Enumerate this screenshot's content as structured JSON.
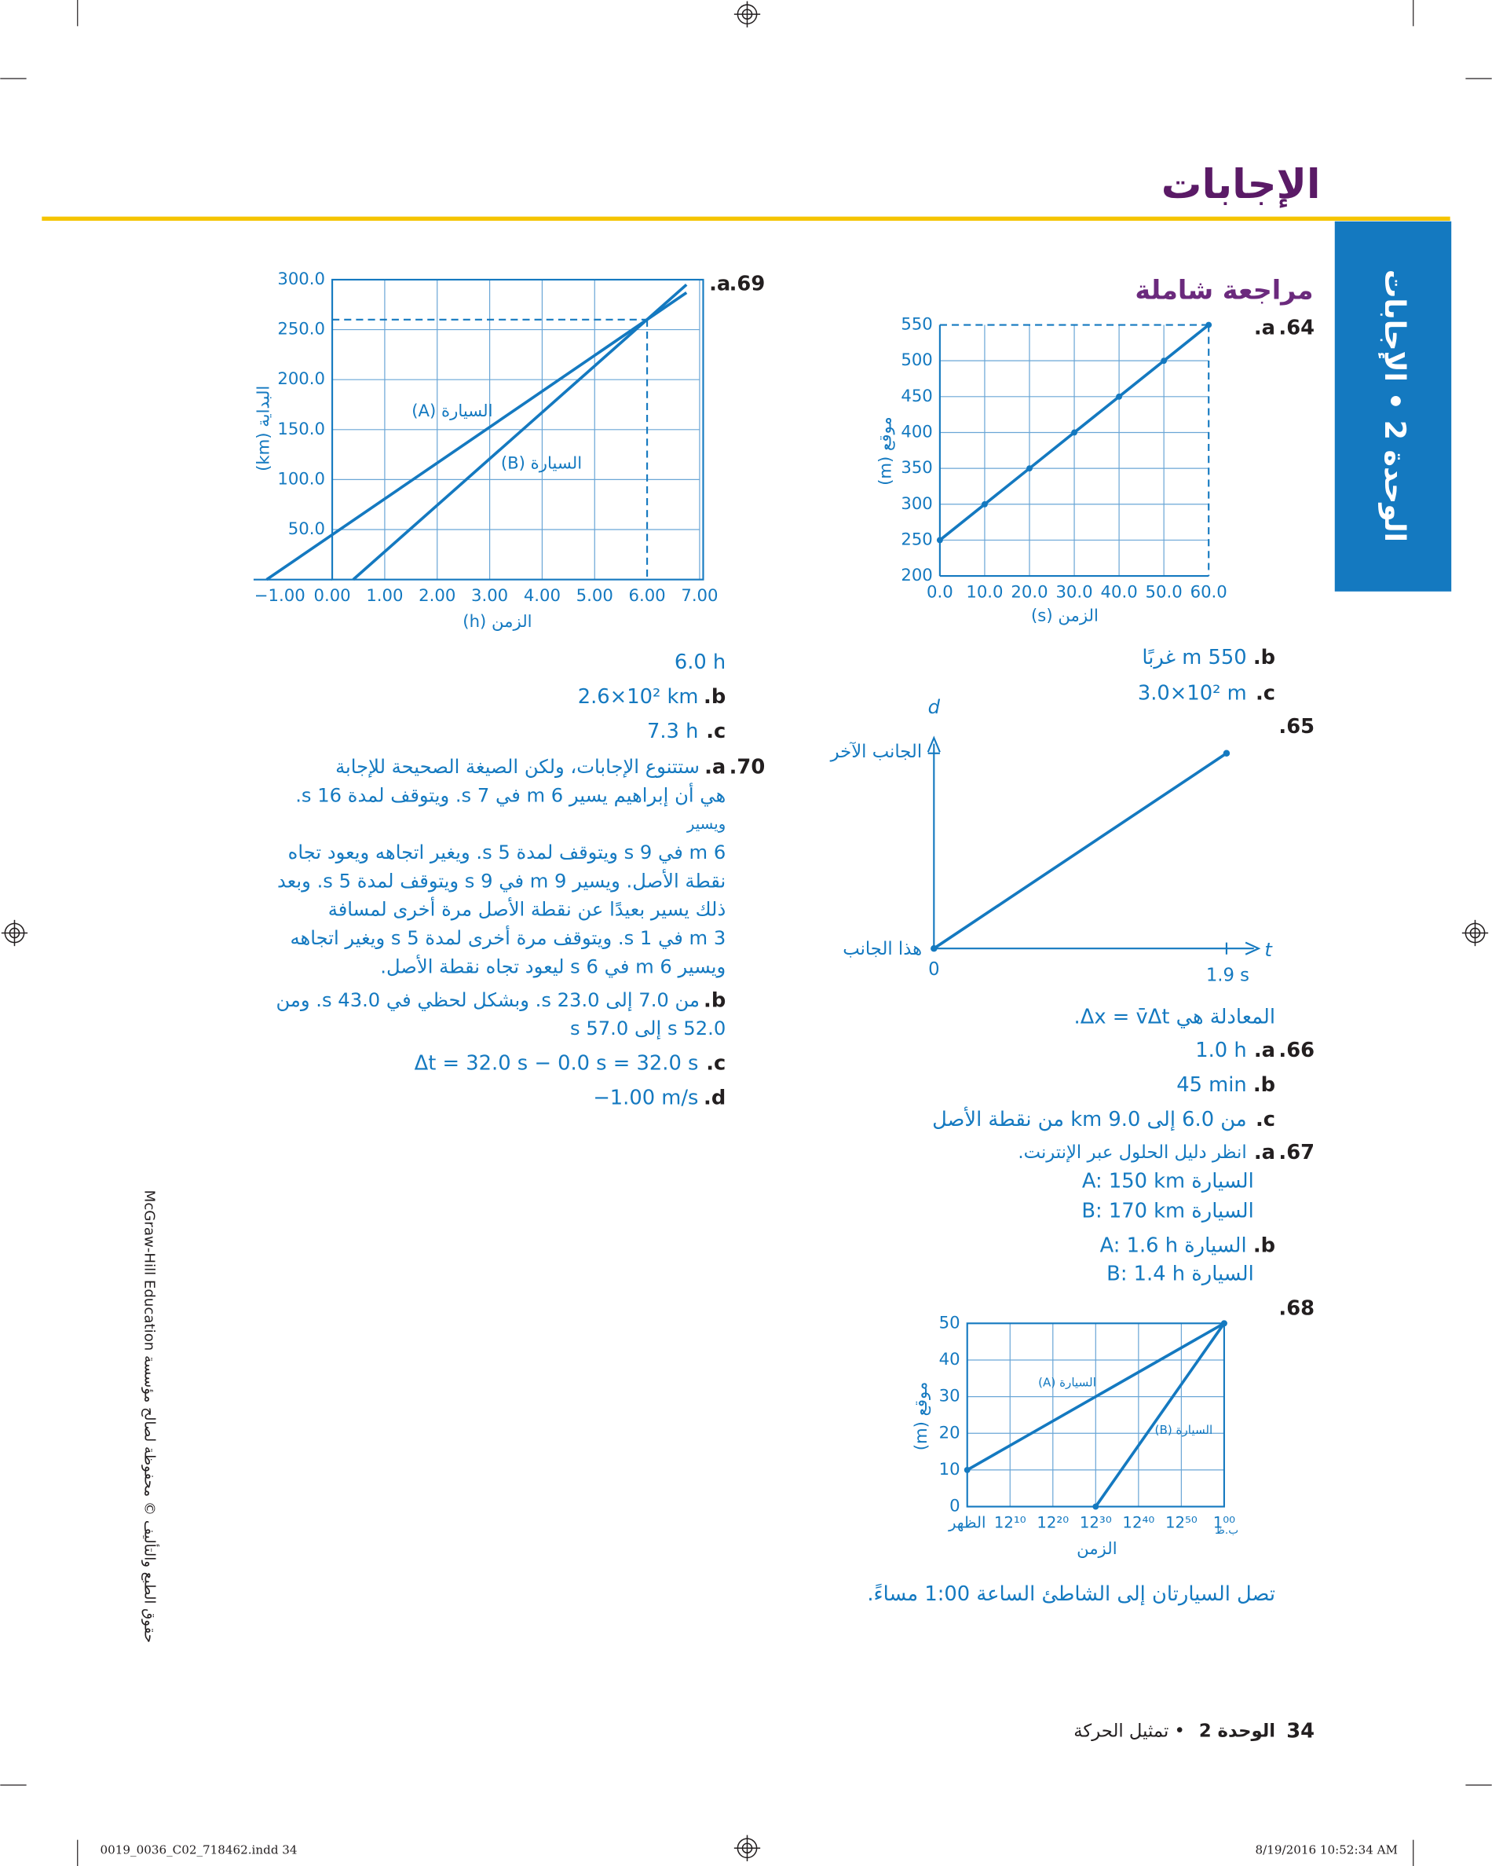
{
  "header": {
    "title": "الإجابات"
  },
  "side_tab": "الوحدة 2 • الإجابات",
  "section_title": "مراجعة شاملة",
  "q64": {
    "number": "64.",
    "a": {
      "label": "a.",
      "chart": {
        "type": "line",
        "ylabel": "موقع (m)",
        "xlabel": "الزمن (s)",
        "xlim": [
          0,
          60
        ],
        "ylim": [
          200,
          550
        ],
        "xticks": [
          {
            "value": 0,
            "label": "0.0"
          },
          {
            "value": 10,
            "label": "10.0"
          },
          {
            "value": 20,
            "label": "20.0"
          },
          {
            "value": 30,
            "label": "30.0"
          },
          {
            "value": 40,
            "label": "40.0"
          },
          {
            "value": 50,
            "label": "50.0"
          },
          {
            "value": 60,
            "label": "60.0"
          }
        ],
        "yticks": [
          200,
          250,
          300,
          350,
          400,
          450,
          500,
          550
        ],
        "grid": true,
        "markers": true,
        "guides": {
          "x": 60,
          "y": 550
        },
        "series": [
          {
            "color": "#1479c0",
            "x": [
              0,
              10,
              20,
              30,
              40,
              50,
              60
            ],
            "values": [
              250,
              300,
              350,
              400,
              450,
              500,
              550
            ]
          }
        ]
      }
    },
    "b": {
      "label": "b.",
      "text": "550 m غربًا"
    },
    "c": {
      "label": "c.",
      "text": "3.0×10² m"
    }
  },
  "q65": {
    "number": "65.",
    "diagram": {
      "y_axis": "d",
      "x_axis": "t",
      "far_side": "الجانب الآخر",
      "near_side": "هذا الجانب",
      "origin": "0",
      "end_time": "1.9 s"
    },
    "equation": "المعادلة هي Δx = v̄Δt."
  },
  "q66": {
    "number": "66.",
    "a": {
      "label": "a.",
      "text": "1.0 h"
    },
    "b": {
      "label": "b.",
      "text": "45 min"
    },
    "c": {
      "label": "c.",
      "text": "من 6.0 إلى 9.0 km من نقطة الأصل"
    }
  },
  "q67": {
    "number": "67.",
    "a": {
      "label": "a.",
      "lines": [
        "انظر دليل الحلول عبر الإنترنت.",
        "السيارة A: 150 km",
        "السيارة B: 170 km"
      ]
    },
    "b": {
      "label": "b.",
      "lines": [
        "السيارة A: 1.6 h",
        "السيارة B: 1.4 h"
      ]
    }
  },
  "q68": {
    "number": "68.",
    "chart": {
      "type": "line",
      "ylabel": "موقع (m)",
      "xlabel": "الزمن",
      "pm_label": "ب.ظ",
      "xlim": [
        0,
        60
      ],
      "ylim": [
        0,
        50
      ],
      "xticks": [
        {
          "value": 0,
          "label": "الظهر"
        },
        {
          "value": 10,
          "label": "12¹⁰"
        },
        {
          "value": 20,
          "label": "12²⁰"
        },
        {
          "value": 30,
          "label": "12³⁰"
        },
        {
          "value": 40,
          "label": "12⁴⁰"
        },
        {
          "value": 50,
          "label": "12⁵⁰"
        },
        {
          "value": 60,
          "label": "1⁰⁰"
        }
      ],
      "yticks": [
        0,
        10,
        20,
        30,
        40,
        50
      ],
      "grid": true,
      "markers": true,
      "series": [
        {
          "name": "السيارة (A)",
          "color": "#1479c0",
          "x": [
            0,
            60
          ],
          "values": [
            10,
            50
          ]
        },
        {
          "name": "السيارة (B)",
          "color": "#1479c0",
          "x": [
            30,
            60
          ],
          "values": [
            0,
            50
          ]
        }
      ]
    },
    "conclusion": "تصل السيارتان إلى الشاطئ الساعة 1:00 مساءً."
  },
  "q69": {
    "number": "69.",
    "a": {
      "label": "a.",
      "chart": {
        "type": "line",
        "ylabel": "البداية (km)",
        "xlabel": "الزمن (h)",
        "xlim": [
          -1,
          7
        ],
        "ylim": [
          0,
          300
        ],
        "xticks": [
          {
            "value": -1,
            "label": "−1.00"
          },
          {
            "value": 0,
            "label": "0.00"
          },
          {
            "value": 1,
            "label": "1.00"
          },
          {
            "value": 2,
            "label": "2.00"
          },
          {
            "value": 3,
            "label": "3.00"
          },
          {
            "value": 4,
            "label": "4.00"
          },
          {
            "value": 5,
            "label": "5.00"
          },
          {
            "value": 6,
            "label": "6.00"
          },
          {
            "value": 7,
            "label": "7.00"
          }
        ],
        "yticks": [
          {
            "value": 50,
            "label": "50.0"
          },
          {
            "value": 100,
            "label": "100.0"
          },
          {
            "value": 150,
            "label": "150.0"
          },
          {
            "value": 200,
            "label": "200.0"
          },
          {
            "value": 250,
            "label": "250.0"
          },
          {
            "value": 300,
            "label": "300.0"
          }
        ],
        "grid": true,
        "markers": false,
        "guides": {
          "x": 6.0,
          "y": 260
        },
        "series": [
          {
            "name": "السيارة (A)",
            "color": "#1479c0",
            "x": [
              -1.25,
              6.75
            ],
            "values": [
              0,
              287
            ]
          },
          {
            "name": "السيارة (B)",
            "color": "#1479c0",
            "x": [
              0.4,
              6.75
            ],
            "values": [
              0,
              295
            ]
          }
        ]
      },
      "text": "6.0 h"
    },
    "b": {
      "label": "b.",
      "text": "2.6×10² km"
    },
    "c": {
      "label": "c.",
      "text": "7.3 h"
    }
  },
  "q70": {
    "number": "70.",
    "a": {
      "label": "a.",
      "lines": [
        "ستتنوع الإجابات، ولكن الصيغة الصحيحة للإجابة",
        "هي أن إبراهيم يسير 6 m في 7 s. ويتوقف لمدة 16 s.",
        "ويسير",
        "6 m في 9 s ويتوقف لمدة 5 s. ويغير اتجاهه ويعود تجاه",
        "نقطة الأصل. ويسير 9 m في 9 s ويتوقف لمدة 5 s. وبعد",
        "ذلك يسير بعيدًا عن نقطة الأصل مرة أخرى لمسافة",
        "3 m في 1 s. ويتوقف مرة أخرى لمدة 5 s ويغير اتجاهه",
        "ويسير 6 m في 6 s ليعود تجاه نقطة الأصل."
      ]
    },
    "b": {
      "label": "b.",
      "lines": [
        "من 7.0 إلى 23.0 s. وبشكل لحظي في 43.0 s. ومن",
        "52.0 s إلى 57.0 s"
      ]
    },
    "c": {
      "label": "c.",
      "text": "Δt = 32.0 s − 0.0 s = 32.0 s"
    },
    "d": {
      "label": "d.",
      "text": "−1.00 m/s"
    }
  },
  "footer": {
    "page": "34",
    "unit": "الوحدة 2",
    "chapter": "• تمثيل الحركة",
    "copyright": "حقوق الطبع والتأليف © محفوظة لصالح مؤسسة McGraw-Hill Education",
    "file": "0019_0036_C02_718462.indd 34",
    "timestamp": "8/19/2016 10:52:34 AM"
  }
}
